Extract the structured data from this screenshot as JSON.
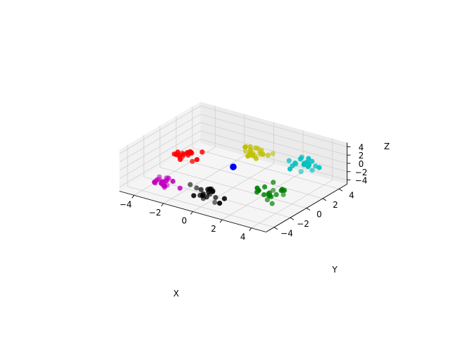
{
  "chart_data": {
    "type": "scatter",
    "projection": "3d",
    "title": "",
    "xlabel": "X",
    "ylabel": "Y",
    "zlabel": "Z",
    "xlim": [
      -5,
      5
    ],
    "ylim": [
      -5,
      5
    ],
    "zlim": [
      -5,
      5
    ],
    "x_ticks": [
      -4,
      -2,
      0,
      2,
      4
    ],
    "y_ticks": [
      -4,
      -2,
      0,
      2,
      4
    ],
    "z_ticks": [
      -4,
      -2,
      0,
      2,
      4
    ],
    "x_tick_labels": [
      "−4",
      "−2",
      "0",
      "2",
      "4"
    ],
    "y_tick_labels": [
      "−4",
      "−2",
      "0",
      "2",
      "4"
    ],
    "z_tick_labels": [
      "−4",
      "−2",
      "0",
      "2",
      "4"
    ],
    "grid": true,
    "legend": false,
    "pane_color": "#f2f2f2",
    "grid_color": "#d0d0d0",
    "series": [
      {
        "color": "#ff0000",
        "center": [
          -3,
          0,
          0
        ],
        "points": 20
      },
      {
        "color": "#c0c000",
        "center": [
          0,
          3,
          0
        ],
        "points": 20
      },
      {
        "color": "#00c0c0",
        "center": [
          3,
          3,
          0
        ],
        "points": 20
      },
      {
        "color": "#008000",
        "center": [
          3,
          -1,
          -2
        ],
        "points": 20
      },
      {
        "color": "#c000c0",
        "center": [
          -3,
          -3,
          -3
        ],
        "points": 20
      },
      {
        "color": "#000000",
        "center": [
          0,
          -3,
          -3
        ],
        "points": 20
      },
      {
        "color": "#0000ff",
        "center": [
          0,
          0,
          0
        ],
        "points": 1
      }
    ]
  }
}
